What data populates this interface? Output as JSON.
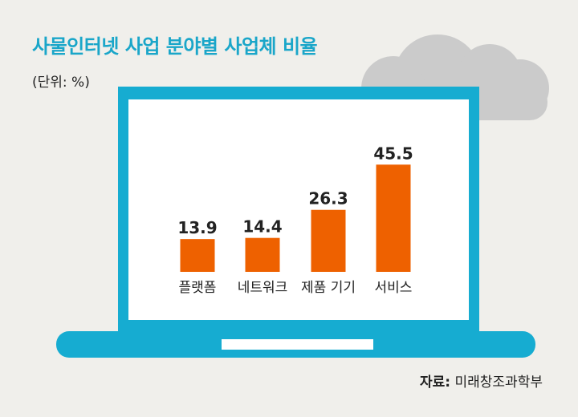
{
  "title": "사물인터넷 사업 분야별 사업체 비율",
  "unit_note": "(단위: %)",
  "source": {
    "label": "자료:",
    "value": "미래창조과학부"
  },
  "colors": {
    "title": "#1aa6c9",
    "laptop": "#16acd1",
    "bar": "#ee6100",
    "cloud": "#cbcbcb",
    "background": "#f0efeb"
  },
  "icons": [
    "cloud-icon",
    "laptop-icon"
  ],
  "chart_data": {
    "type": "bar",
    "title": "사물인터넷 사업 분야별 사업체 비율",
    "categories": [
      "플랫폼",
      "네트워크",
      "제품 기기",
      "서비스"
    ],
    "values": [
      13.9,
      14.4,
      26.3,
      45.5
    ],
    "data_labels": [
      "13.9",
      "14.4",
      "26.3",
      "45.5"
    ],
    "ylabel": "",
    "xlabel": "",
    "ylim": [
      0,
      50
    ],
    "grid": false,
    "legend": "none"
  }
}
